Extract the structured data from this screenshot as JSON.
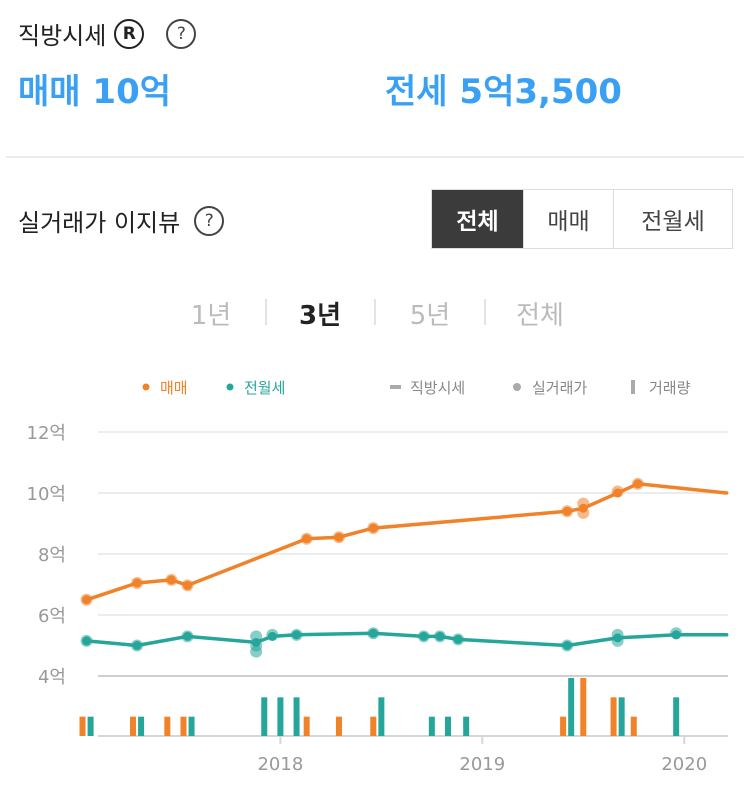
{
  "summary": {
    "title": "직방시세",
    "reg_mark": "R",
    "help": "?",
    "sale_label": "매매",
    "sale_value": "10억",
    "jeonse_label": "전세",
    "jeonse_value": "5억3,500"
  },
  "easy_view": {
    "title": "실거래가 이지뷰",
    "help": "?",
    "tabs": [
      "전체",
      "매매",
      "전월세"
    ],
    "active_tab": "전체"
  },
  "periods": {
    "items": [
      "1년",
      "3년",
      "5년",
      "전체"
    ],
    "active": "3년"
  },
  "colors": {
    "sale": "#f0822a",
    "rent": "#26a69a",
    "legend_grey": "#aaaaaa",
    "accent_blue": "#3aa0f3"
  },
  "chart_data": {
    "type": "line",
    "x_range": [
      "2017-03",
      "2020-03"
    ],
    "ylim": [
      4,
      12
    ],
    "yticks": [
      4,
      6,
      8,
      10,
      12
    ],
    "ytick_labels": [
      "4억",
      "6억",
      "8억",
      "10억",
      "12억"
    ],
    "xtick_labels": [
      "2018",
      "2019",
      "2020"
    ],
    "xtick_values": [
      2018.0,
      2019.0,
      2020.0
    ],
    "legend": {
      "series_items": [
        {
          "name": "매매",
          "color": "#f0822a"
        },
        {
          "name": "전월세",
          "color": "#26a69a"
        }
      ],
      "type_items": [
        {
          "name": "직방시세",
          "marker": "line"
        },
        {
          "name": "실거래가",
          "marker": "dot"
        },
        {
          "name": "거래량",
          "marker": "bar"
        }
      ],
      "placement": "top"
    },
    "series": [
      {
        "name": "매매",
        "color": "#f0822a",
        "x": [
          2017.04,
          2017.29,
          2017.46,
          2017.54,
          2018.13,
          2018.29,
          2018.46,
          2019.42,
          2019.5,
          2019.67,
          2019.77,
          2020.21
        ],
        "values": [
          6.5,
          7.05,
          7.15,
          6.97,
          8.5,
          8.55,
          8.85,
          9.4,
          9.5,
          10.0,
          10.3,
          10.0
        ]
      },
      {
        "name": "전월세",
        "color": "#26a69a",
        "x": [
          2017.04,
          2017.29,
          2017.54,
          2017.88,
          2017.96,
          2018.08,
          2018.46,
          2018.71,
          2018.79,
          2018.88,
          2019.42,
          2019.67,
          2019.96,
          2020.21
        ],
        "values": [
          5.15,
          5.0,
          5.3,
          5.1,
          5.3,
          5.35,
          5.4,
          5.3,
          5.3,
          5.2,
          5.0,
          5.25,
          5.35,
          5.35
        ]
      }
    ],
    "transactions": {
      "sale": {
        "x": [
          2017.04,
          2017.29,
          2017.46,
          2017.54,
          2018.13,
          2018.29,
          2018.46,
          2019.42,
          2019.5,
          2019.5,
          2019.67,
          2019.77
        ],
        "values": [
          6.5,
          7.05,
          7.15,
          6.97,
          8.5,
          8.55,
          8.85,
          9.4,
          9.35,
          9.65,
          10.05,
          10.3
        ]
      },
      "rent": {
        "x": [
          2017.04,
          2017.29,
          2017.54,
          2017.88,
          2017.88,
          2017.88,
          2017.96,
          2018.08,
          2018.46,
          2018.71,
          2018.79,
          2018.88,
          2019.42,
          2019.67,
          2019.67,
          2019.96
        ],
        "values": [
          5.15,
          5.0,
          5.3,
          5.3,
          5.0,
          4.8,
          5.35,
          5.35,
          5.4,
          5.3,
          5.3,
          5.2,
          5.0,
          5.35,
          5.15,
          5.4
        ]
      }
    },
    "volume": {
      "sale": {
        "x": [
          2017.02,
          2017.27,
          2017.44,
          2017.52,
          2018.13,
          2018.29,
          2018.46,
          2019.4,
          2019.5,
          2019.65,
          2019.75
        ],
        "values": [
          1,
          1,
          1,
          1,
          1,
          1,
          1,
          1,
          3,
          2,
          1
        ]
      },
      "rent": {
        "x": [
          2017.06,
          2017.31,
          2017.56,
          2017.92,
          2018.0,
          2018.08,
          2018.5,
          2018.75,
          2018.83,
          2018.92,
          2019.44,
          2019.69,
          2019.96
        ],
        "values": [
          1,
          1,
          1,
          2,
          2,
          2,
          2,
          1,
          1,
          1,
          3,
          2,
          2
        ]
      }
    },
    "grid": true
  }
}
